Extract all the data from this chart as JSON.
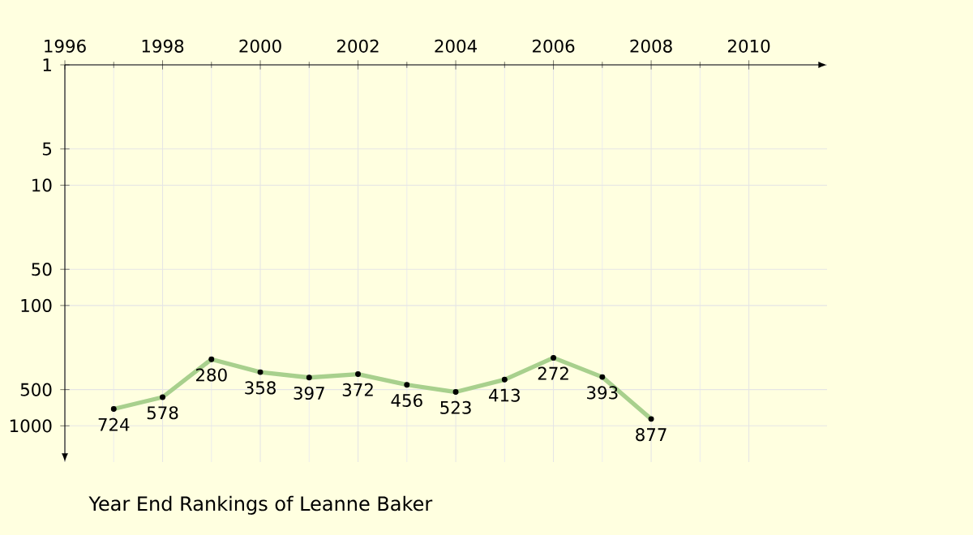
{
  "chart_data": {
    "type": "line",
    "title": "Year End Rankings of Leanne Baker",
    "x": [
      1997,
      1998,
      1999,
      2000,
      2001,
      2002,
      2003,
      2004,
      2005,
      2006,
      2007,
      2008
    ],
    "values": [
      724,
      578,
      280,
      358,
      397,
      372,
      456,
      523,
      413,
      272,
      393,
      877
    ],
    "color": "#a8d08d",
    "xlim": [
      1996,
      2011.6
    ],
    "xticks": [
      1996,
      1998,
      2000,
      2002,
      2004,
      2006,
      2008,
      2010
    ],
    "ylim": [
      2000,
      1
    ],
    "yticks": [
      1,
      5,
      10,
      50,
      100,
      500,
      1000
    ],
    "log": true,
    "grid": true,
    "marker": "circle",
    "line_style": "solid",
    "data_labels": true
  }
}
